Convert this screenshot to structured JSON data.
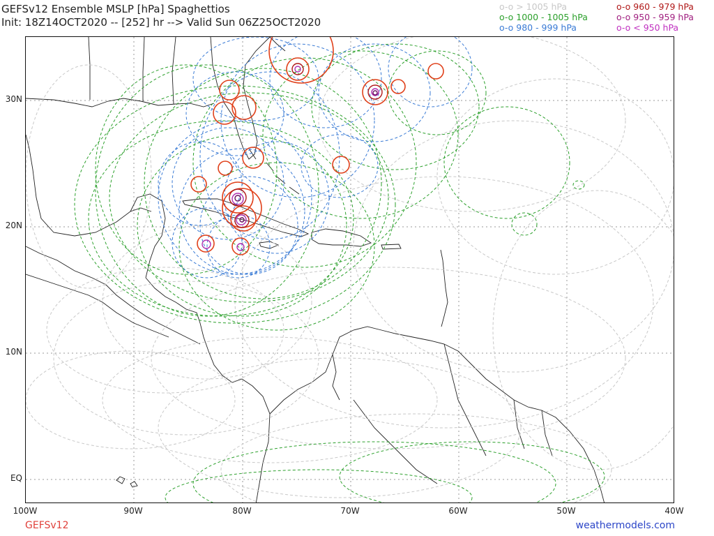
{
  "header": {
    "title": "GEFSv12 Ensemble MSLP [hPa] Spaghettios",
    "subtitle": "Init: 18Z14OCT2020 -- [252] hr --> Valid Sun 06Z25OCT2020"
  },
  "legend": [
    {
      "label": "o-o > 1005 hPa",
      "color": "#c8c8c8"
    },
    {
      "label": "o-o 1000 - 1005 hPa",
      "color": "#2ca02c"
    },
    {
      "label": "o-o 980 - 999 hPa",
      "color": "#3a7bd5"
    },
    {
      "label": "o-o 960 - 979 hPa",
      "color": "#b01818"
    },
    {
      "label": "o-o 950 - 959 hPa",
      "color": "#a02080"
    },
    {
      "label": "o-o < 950 hPa",
      "color": "#c030c0"
    }
  ],
  "axes": {
    "lat_labels": [
      "30N",
      "20N",
      "10N",
      "EQ"
    ],
    "lon_labels": [
      "100W",
      "90W",
      "80W",
      "70W",
      "60W",
      "50W",
      "40W"
    ]
  },
  "footer": {
    "model": "GEFSv12",
    "source": "weathermodels.com"
  }
}
